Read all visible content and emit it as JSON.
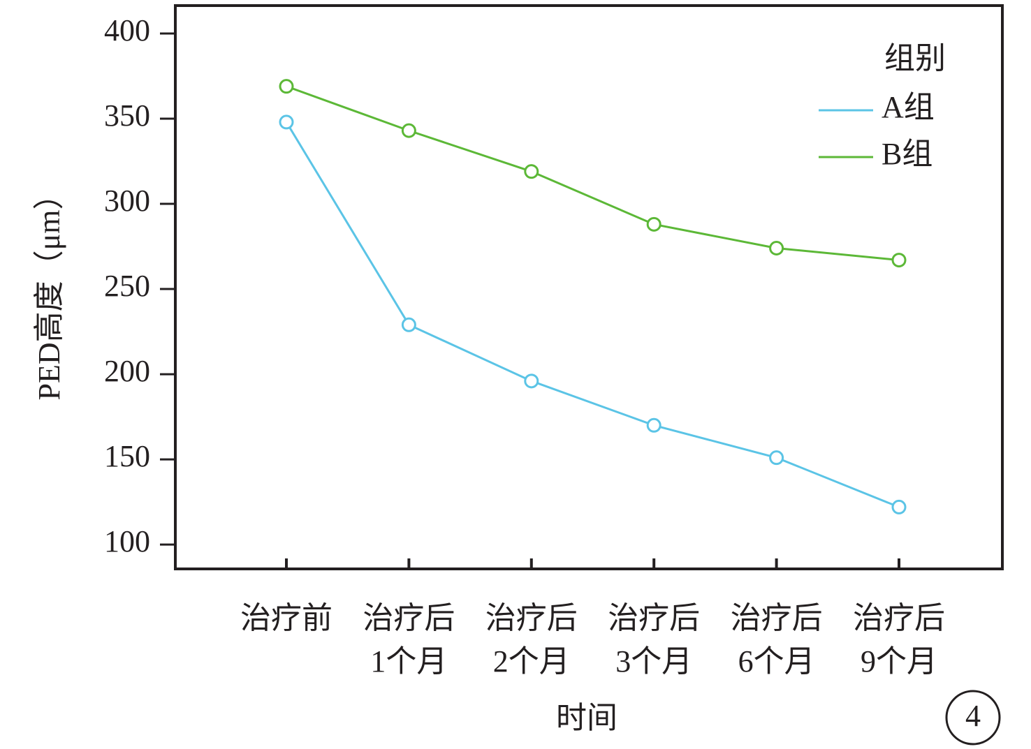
{
  "chart_data": {
    "type": "line",
    "y_label": "PED高度（μm）",
    "x_label": "时间",
    "legend_title": "组别",
    "annotation": "4",
    "categories": [
      "治疗前",
      "治疗后\n1个月",
      "治疗后\n2个月",
      "治疗后\n3个月",
      "治疗后\n6个月",
      "治疗后\n9个月"
    ],
    "series": [
      {
        "name": "A组",
        "color": "#5bc4e6",
        "values": [
          348,
          229,
          196,
          170,
          151,
          122
        ]
      },
      {
        "name": "B组",
        "color": "#5cb837",
        "values": [
          369,
          343,
          319,
          288,
          274,
          267
        ]
      }
    ],
    "ylim": [
      85.7,
      416.4
    ],
    "yticks": [
      100,
      150,
      200,
      250,
      300,
      350,
      400
    ],
    "markers": "open-circle",
    "legend": "top-right"
  }
}
